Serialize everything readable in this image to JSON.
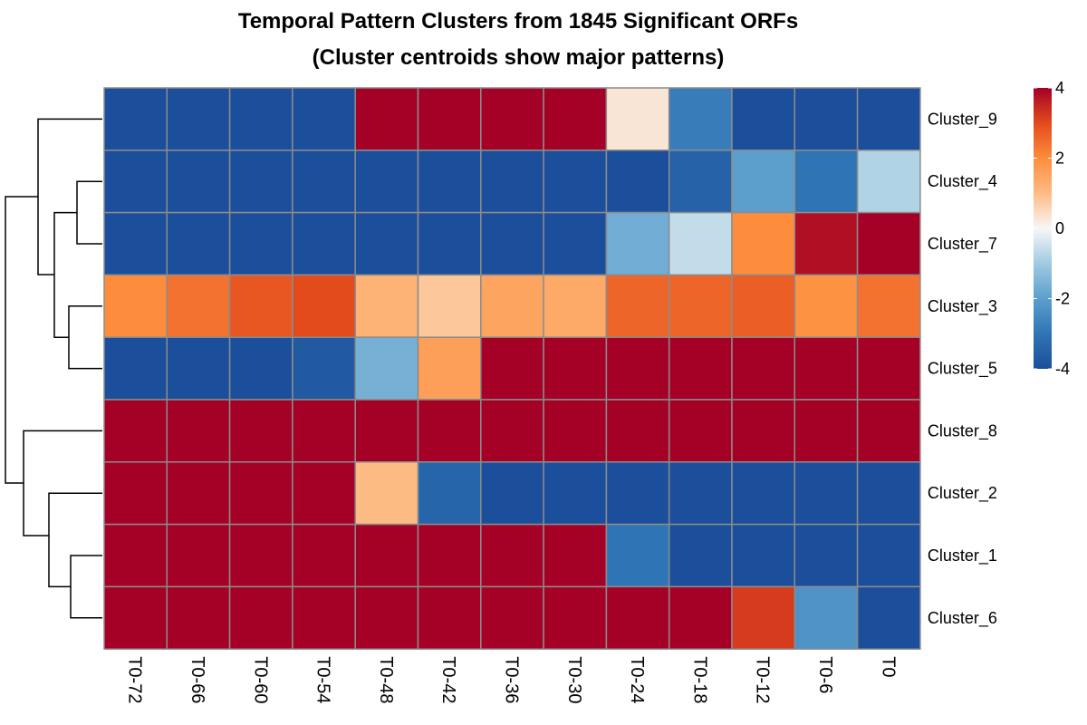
{
  "chart_data": {
    "type": "heatmap",
    "title": "Temporal Pattern Clusters from 1845 Significant ORFs",
    "subtitle": "(Cluster centroids show major patterns)",
    "columns": [
      "T0-72",
      "T0-66",
      "T0-60",
      "T0-54",
      "T0-48",
      "T0-42",
      "T0-36",
      "T0-30",
      "T0-24",
      "T0-18",
      "T0-12",
      "T0-6",
      "T0"
    ],
    "rows": [
      "Cluster_9",
      "Cluster_4",
      "Cluster_7",
      "Cluster_3",
      "Cluster_5",
      "Cluster_8",
      "Cluster_2",
      "Cluster_1",
      "Cluster_6"
    ],
    "values": [
      [
        -4,
        -4,
        -4,
        -4,
        4,
        4,
        4,
        4,
        0.3,
        -2.8,
        -4,
        -4,
        -4
      ],
      [
        -4,
        -4,
        -4,
        -4,
        -4,
        -4,
        -4,
        -4,
        -4,
        -3.5,
        -2,
        -3,
        -0.8
      ],
      [
        -4,
        -4,
        -4,
        -4,
        -4,
        -4,
        -4,
        -4,
        -1.7,
        -0.6,
        2,
        3.8,
        4
      ],
      [
        2,
        2.4,
        2.8,
        3,
        1.2,
        0.8,
        1.5,
        1.4,
        2.6,
        2.6,
        2.7,
        1.9,
        2.4
      ],
      [
        -4,
        -4,
        -4,
        -3.7,
        -1.6,
        1.6,
        4,
        4,
        4,
        4,
        4,
        4,
        4
      ],
      [
        4,
        4,
        4,
        4,
        4,
        4,
        4,
        4,
        4,
        4,
        4,
        4,
        4
      ],
      [
        4,
        4,
        4,
        4,
        1,
        -3.4,
        -4,
        -4,
        -4,
        -4,
        -4,
        -4,
        -4
      ],
      [
        4,
        4,
        4,
        4,
        4,
        4,
        4,
        4,
        -3,
        -4,
        -4,
        -4,
        -4
      ],
      [
        4,
        4,
        4,
        4,
        4,
        4,
        4,
        4,
        4,
        4,
        3.2,
        -2.3,
        -4
      ]
    ],
    "color_scale": {
      "min": -4,
      "max": 4,
      "ticks": [
        4,
        2,
        0,
        -2,
        -4
      ],
      "stops": [
        "#1B4F9B",
        "#2F74B5",
        "#5C9FCD",
        "#A0CAE2",
        "#F7F7F7",
        "#FDBB84",
        "#FD8D3C",
        "#E34A1C",
        "#A50026"
      ]
    },
    "dendrogram": "rows",
    "grid": true
  }
}
